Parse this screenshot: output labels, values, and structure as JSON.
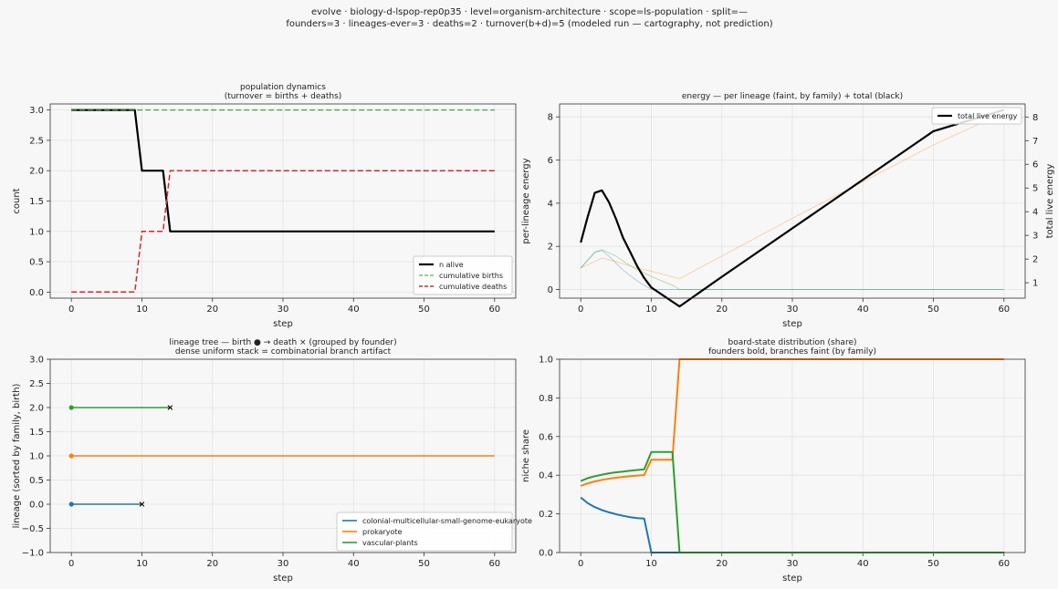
{
  "suptitle": {
    "line1": "evolve · biology-d-lspop-rep0p35 · level=organism-architecture · scope=ls-population · split=—",
    "line2": "founders=3 · lineages-ever=3 · deaths=2 · turnover(b+d)=5   (modeled run — cartography, not prediction)"
  },
  "colors": {
    "background": "#f7f7f7",
    "grid": "#e3e3e3",
    "n_alive": "#000000",
    "births": "#2ca02c",
    "deaths": "#d62728",
    "eukaryote": "#1f77b4",
    "prokaryote": "#ff7f0e",
    "vascular": "#2ca02c"
  },
  "chart_data": [
    {
      "id": "population",
      "type": "line",
      "title": "population dynamics",
      "subtitle": "(turnover = births + deaths)",
      "xlabel": "step",
      "ylabel": "count",
      "xlim": [
        -3,
        63
      ],
      "ylim": [
        -0.1,
        3.1
      ],
      "xticks": [
        0,
        10,
        20,
        30,
        40,
        50,
        60
      ],
      "yticks": [
        0.0,
        0.5,
        1.0,
        1.5,
        2.0,
        2.5,
        3.0
      ],
      "ytick_labels": [
        "0.0",
        "0.5",
        "1.0",
        "1.5",
        "2.0",
        "2.5",
        "3.0"
      ],
      "grid": true,
      "legend_position": "lower-right",
      "series": [
        {
          "name": "n alive",
          "color": "#000000",
          "dash": "solid",
          "width": 2.2,
          "x": [
            0,
            9,
            10,
            13,
            14,
            60
          ],
          "y": [
            3,
            3,
            2,
            2,
            1,
            1
          ]
        },
        {
          "name": "cumulative births",
          "color": "#2ca02c",
          "dash": "dashed",
          "width": 1.1,
          "x": [
            0,
            60
          ],
          "y": [
            3,
            3
          ]
        },
        {
          "name": "cumulative deaths",
          "color": "#d62728",
          "dash": "dashed",
          "width": 1.5,
          "x": [
            0,
            9,
            10,
            13,
            14,
            60
          ],
          "y": [
            0,
            0,
            1,
            1,
            2,
            2
          ]
        }
      ]
    },
    {
      "id": "energy",
      "type": "line",
      "title": "energy — per lineage (faint, by family) + total (black)",
      "subtitle": "",
      "xlabel": "step",
      "ylabel": "per-lineage energy",
      "ylabel_right": "total live energy",
      "xlim": [
        -3,
        63
      ],
      "ylim": [
        -0.4,
        8.6
      ],
      "xticks": [
        0,
        10,
        20,
        30,
        40,
        50,
        60
      ],
      "yticks": [
        0,
        2,
        4,
        6,
        8
      ],
      "ytick_labels": [
        "0",
        "2",
        "4",
        "6",
        "8"
      ],
      "ylim_right": [
        0.35,
        8.55
      ],
      "yticks_right": [
        1,
        2,
        3,
        4,
        5,
        6,
        7,
        8
      ],
      "ytick_labels_right": [
        "1",
        "2",
        "3",
        "4",
        "5",
        "6",
        "7",
        "8"
      ],
      "grid": true,
      "legend_position": "top-right",
      "series": [
        {
          "name": "total live energy",
          "axis": "right",
          "color": "#000000",
          "width": 2.2,
          "x": [
            0,
            1,
            2,
            3,
            4,
            5,
            6,
            7,
            8,
            9,
            10,
            11,
            12,
            13,
            14,
            20,
            30,
            40,
            50,
            60
          ],
          "y": [
            2.7,
            3.8,
            4.8,
            4.9,
            4.4,
            3.7,
            2.9,
            2.3,
            1.7,
            1.2,
            0.8,
            0.6,
            0.4,
            0.2,
            0.0,
            1.25,
            3.3,
            5.35,
            7.4,
            8.3
          ]
        },
        {
          "family": "prokaryote",
          "axis": "left",
          "color": "#ff7f0e",
          "width": 0.9,
          "opacity": 0.35,
          "x": [
            0,
            2,
            3,
            5,
            8,
            10,
            14,
            20,
            30,
            40,
            50,
            60
          ],
          "y": [
            1.0,
            1.3,
            1.45,
            1.3,
            1.0,
            0.85,
            0.5,
            1.55,
            3.3,
            5.0,
            6.7,
            8.2
          ]
        },
        {
          "family": "colonial-multicellular-small-genome-eukaryote",
          "axis": "left",
          "color": "#1f77b4",
          "width": 0.9,
          "opacity": 0.35,
          "x": [
            0,
            2,
            3,
            4,
            6,
            8,
            10,
            60
          ],
          "y": [
            1.0,
            1.75,
            1.8,
            1.55,
            0.9,
            0.4,
            0.0,
            0.0
          ]
        },
        {
          "family": "vascular-plants",
          "axis": "left",
          "color": "#2ca02c",
          "width": 0.9,
          "opacity": 0.35,
          "x": [
            0,
            2,
            3,
            5,
            7,
            10,
            13,
            14,
            60
          ],
          "y": [
            1.0,
            1.7,
            1.85,
            1.55,
            1.1,
            0.6,
            0.2,
            0.0,
            0.0
          ]
        }
      ]
    },
    {
      "id": "lineage_tree",
      "type": "line",
      "title": "lineage tree — birth ● → death ×  (grouped by founder)",
      "subtitle": "dense uniform stack = combinatorial branch artifact",
      "xlabel": "step",
      "ylabel": "lineage (sorted by family, birth)",
      "xlim": [
        -3,
        63
      ],
      "ylim": [
        -1.0,
        3.0
      ],
      "xticks": [
        0,
        10,
        20,
        30,
        40,
        50,
        60
      ],
      "yticks": [
        -1.0,
        -0.5,
        0.0,
        0.5,
        1.0,
        1.5,
        2.0,
        2.5,
        3.0
      ],
      "ytick_labels": [
        "−1.0",
        "−0.5",
        "0.0",
        "0.5",
        "1.0",
        "1.5",
        "2.0",
        "2.5",
        "3.0"
      ],
      "grid": true,
      "legend_position": "lower-right",
      "series": [
        {
          "name": "colonial-multicellular-small-genome-eukaryote",
          "color": "#1f77b4",
          "lane": 0,
          "birth": 0,
          "end": 10,
          "died": true
        },
        {
          "name": "prokaryote",
          "color": "#ff7f0e",
          "lane": 1,
          "birth": 0,
          "end": 60,
          "died": false
        },
        {
          "name": "vascular-plants",
          "color": "#2ca02c",
          "lane": 2,
          "birth": 0,
          "end": 14,
          "died": true
        }
      ]
    },
    {
      "id": "niche_share",
      "type": "line",
      "title": "board-state distribution (share)",
      "subtitle": "founders bold, branches faint (by family)",
      "xlabel": "step",
      "ylabel": "niche share",
      "xlim": [
        -3,
        63
      ],
      "ylim": [
        0.0,
        1.0
      ],
      "xticks": [
        0,
        10,
        20,
        30,
        40,
        50,
        60
      ],
      "yticks": [
        0.0,
        0.2,
        0.4,
        0.6,
        0.8,
        1.0
      ],
      "ytick_labels": [
        "0.0",
        "0.2",
        "0.4",
        "0.6",
        "0.8",
        "1.0"
      ],
      "grid": true,
      "series": [
        {
          "family": "colonial-multicellular-small-genome-eukaryote",
          "color": "#1f77b4",
          "width": 2.0,
          "x": [
            0,
            1,
            2,
            3,
            4,
            5,
            6,
            7,
            8,
            9,
            10,
            60
          ],
          "y": [
            0.285,
            0.255,
            0.235,
            0.22,
            0.208,
            0.198,
            0.19,
            0.183,
            0.178,
            0.176,
            0.0,
            0.0
          ]
        },
        {
          "family": "prokaryote",
          "color": "#ff7f0e",
          "width": 2.0,
          "x": [
            0,
            1,
            2,
            3,
            4,
            5,
            6,
            7,
            8,
            9,
            10,
            13,
            14,
            60
          ],
          "y": [
            0.345,
            0.358,
            0.368,
            0.376,
            0.382,
            0.387,
            0.391,
            0.395,
            0.398,
            0.401,
            0.48,
            0.48,
            1.0,
            1.0
          ]
        },
        {
          "family": "vascular-plants",
          "color": "#2ca02c",
          "width": 2.0,
          "x": [
            0,
            1,
            2,
            3,
            4,
            5,
            6,
            7,
            8,
            9,
            10,
            13,
            14,
            60
          ],
          "y": [
            0.37,
            0.385,
            0.395,
            0.403,
            0.41,
            0.415,
            0.419,
            0.423,
            0.427,
            0.43,
            0.52,
            0.52,
            0.0,
            0.0
          ]
        }
      ]
    }
  ]
}
